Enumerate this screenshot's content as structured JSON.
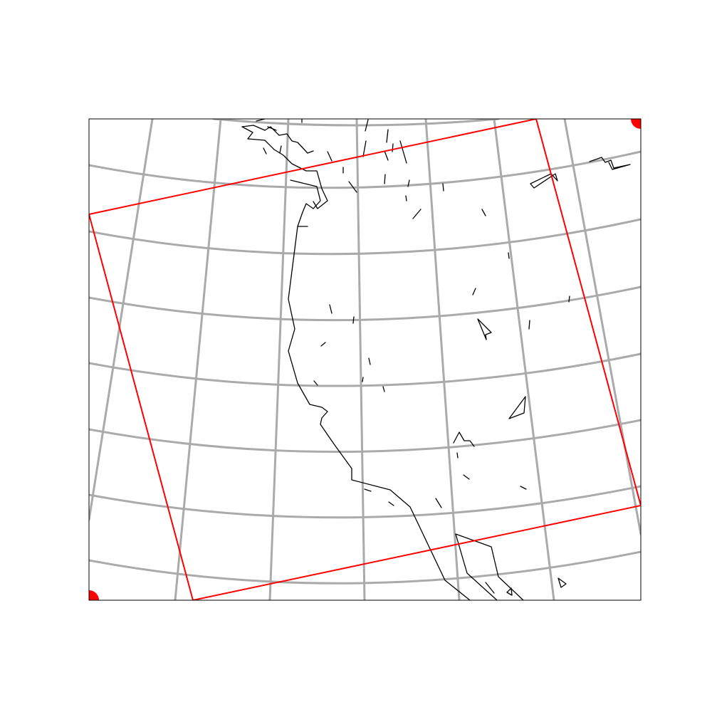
{
  "map": {
    "projection": "conic",
    "graticule": true,
    "coastlines": true,
    "domain_outline": true,
    "corner_markers": 2,
    "colors": {
      "background": "#ffffff",
      "graticule": "#aaaaaa",
      "coastline": "#000000",
      "domain_outline": "#ff0000",
      "corner_marker": "#ff0000",
      "frame": "#000000"
    }
  }
}
